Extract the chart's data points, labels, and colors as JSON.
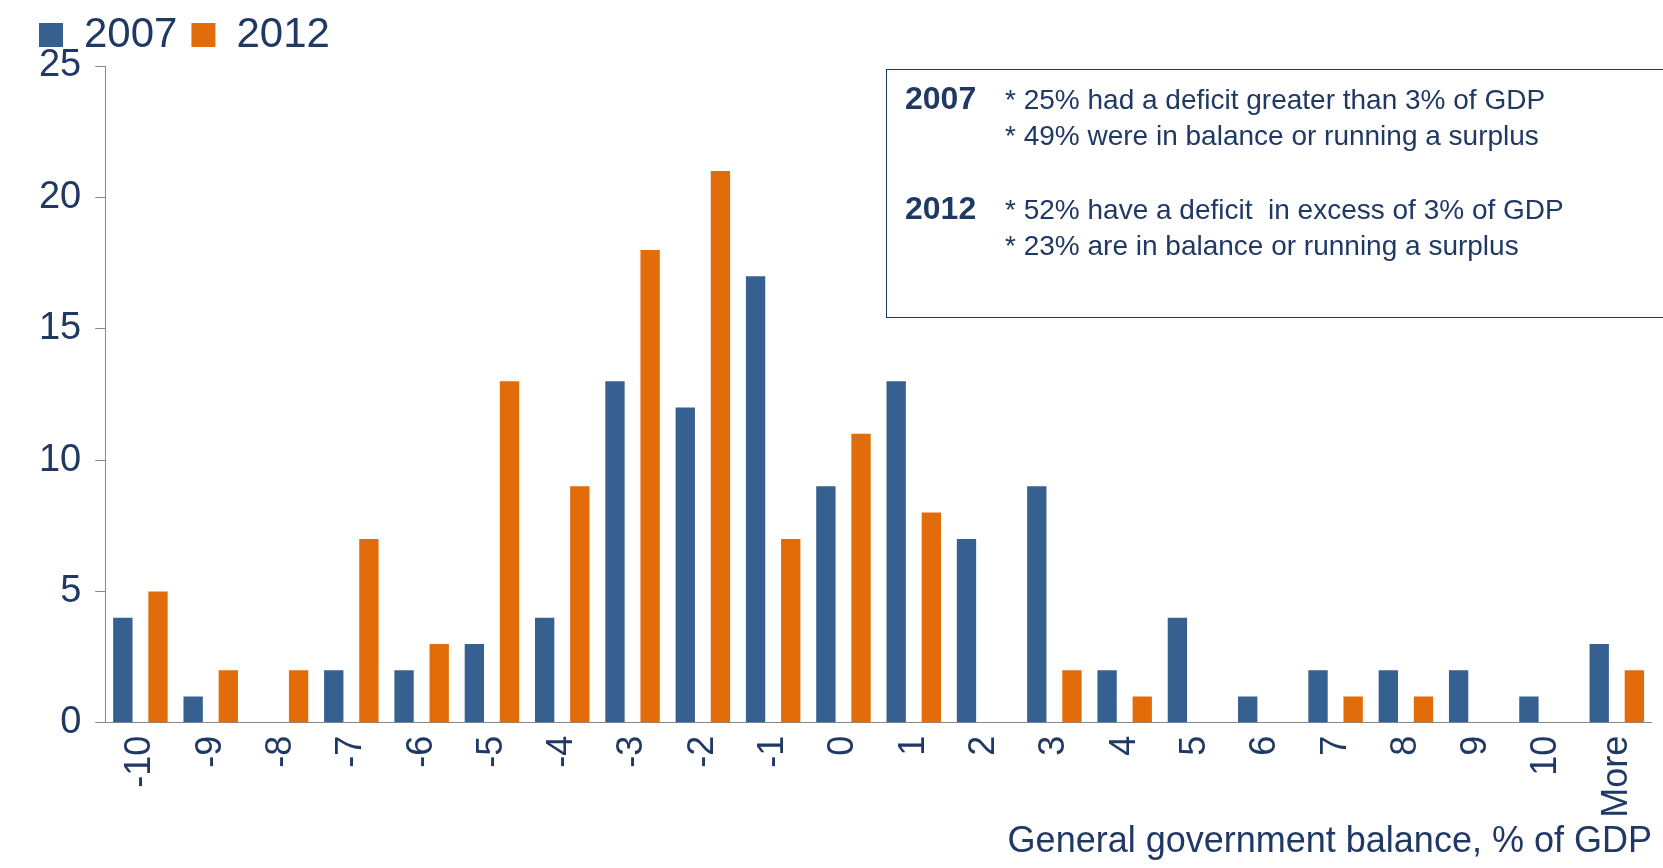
{
  "chart_data": {
    "type": "bar",
    "xlabel": "General government balance, % of GDP",
    "categories": [
      "-10",
      "-9",
      "-8",
      "-7",
      "-6",
      "-5",
      "-4",
      "-3",
      "-2",
      "-1",
      "0",
      "1",
      "2",
      "3",
      "4",
      "5",
      "6",
      "7",
      "8",
      "9",
      "10",
      "More"
    ],
    "series": [
      {
        "name": "2007",
        "color": "#36608f",
        "values": [
          4,
          1,
          0,
          2,
          2,
          3,
          4,
          13,
          12,
          17,
          9,
          13,
          7,
          9,
          2,
          4,
          1,
          2,
          2,
          2,
          1,
          3
        ]
      },
      {
        "name": "2012",
        "color": "#e36c0a",
        "values": [
          5,
          2,
          2,
          7,
          3,
          13,
          9,
          18,
          21,
          7,
          11,
          8,
          0,
          2,
          1,
          0,
          0,
          1,
          1,
          0,
          0,
          2
        ]
      }
    ],
    "ylim": [
      0,
      25
    ],
    "yticks": [
      0,
      5,
      10,
      15,
      20,
      25
    ],
    "grid": false,
    "legend": "top",
    "annotations": [
      "2007",
      "* 25% had a deficit greater than 3% of GDP",
      "* 49% were in balance or running a surplus",
      "2012",
      "* 52% have a deficit  in excess of 3% of GDP",
      "* 23% are in balance or running a surplus"
    ]
  }
}
